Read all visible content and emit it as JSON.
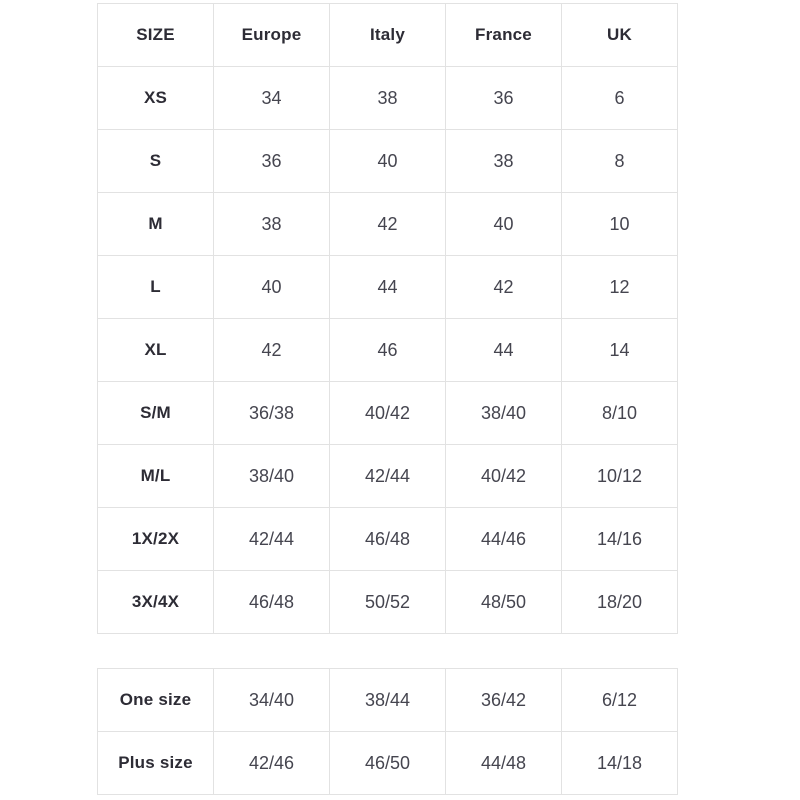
{
  "colors": {
    "background": "#ffffff",
    "border": "#e2e2e2",
    "header_text": "#2d2c35",
    "value_text": "#45454f"
  },
  "table_main": {
    "headers": [
      "SIZE",
      "Europe",
      "Italy",
      "France",
      "UK"
    ],
    "rows": [
      {
        "label": "XS",
        "values": [
          "34",
          "38",
          "36",
          "6"
        ]
      },
      {
        "label": "S",
        "values": [
          "36",
          "40",
          "38",
          "8"
        ]
      },
      {
        "label": "M",
        "values": [
          "38",
          "42",
          "40",
          "10"
        ]
      },
      {
        "label": "L",
        "values": [
          "40",
          "44",
          "42",
          "12"
        ]
      },
      {
        "label": "XL",
        "values": [
          "42",
          "46",
          "44",
          "14"
        ]
      },
      {
        "label": "S/M",
        "values": [
          "36/38",
          "40/42",
          "38/40",
          "8/10"
        ]
      },
      {
        "label": "M/L",
        "values": [
          "38/40",
          "42/44",
          "40/42",
          "10/12"
        ]
      },
      {
        "label": "1X/2X",
        "values": [
          "42/44",
          "46/48",
          "44/46",
          "14/16"
        ]
      },
      {
        "label": "3X/4X",
        "values": [
          "46/48",
          "50/52",
          "48/50",
          "18/20"
        ]
      }
    ]
  },
  "table_special": {
    "rows": [
      {
        "label": "One size",
        "values": [
          "34/40",
          "38/44",
          "36/42",
          "6/12"
        ]
      },
      {
        "label": "Plus size",
        "values": [
          "42/46",
          "46/50",
          "44/48",
          "14/18"
        ]
      }
    ]
  }
}
